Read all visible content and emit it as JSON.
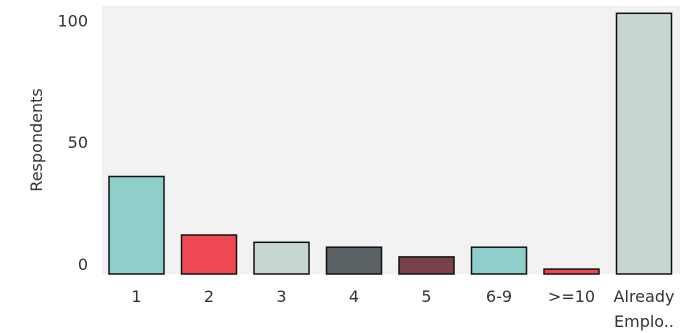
{
  "chart_data": {
    "type": "bar",
    "title": "",
    "xlabel": "",
    "ylabel": "Respondents",
    "categories": [
      "1",
      "2",
      "3",
      "4",
      "5",
      "6-9",
      ">=10",
      "Already Emplo.."
    ],
    "values": [
      40,
      16,
      13,
      11,
      7,
      11,
      2,
      107
    ],
    "bar_colors": [
      "#8ecfc9",
      "#ee4852",
      "#c8d6d3",
      "#5b6367",
      "#7a4248",
      "#8ecfc9",
      "#ee4852",
      "#c8d6d3"
    ],
    "yticks": [
      0,
      50,
      100
    ],
    "ylim": [
      0,
      110
    ],
    "grid": false,
    "legend": "none",
    "background": "#f2f2f2"
  }
}
